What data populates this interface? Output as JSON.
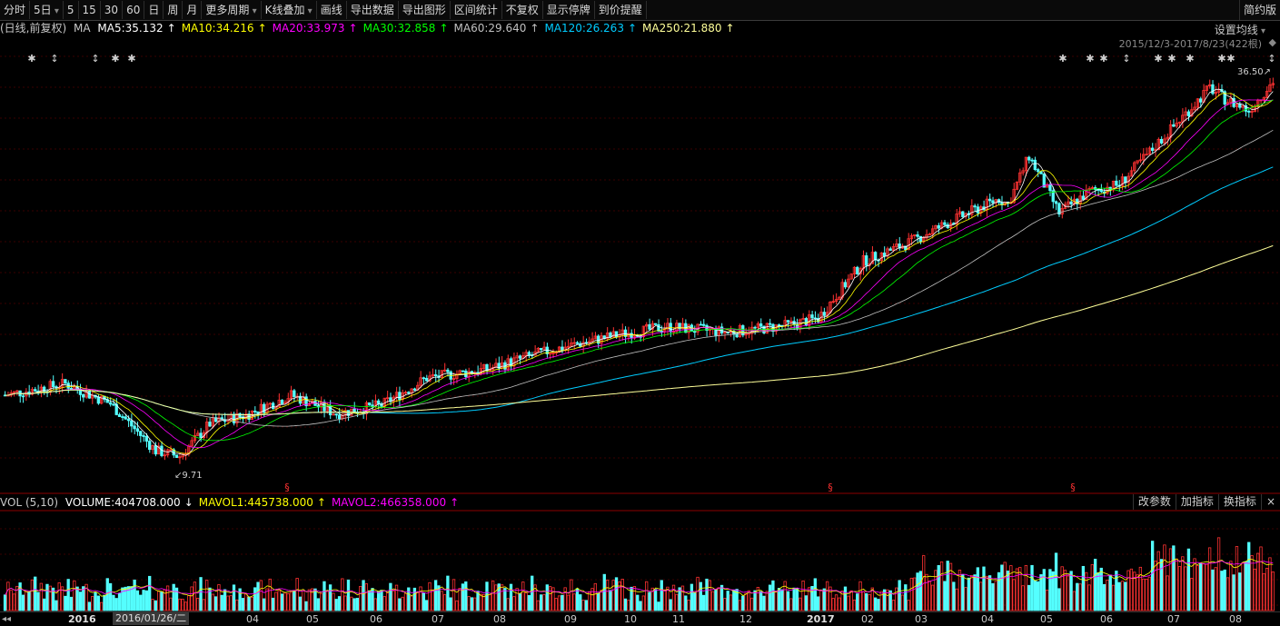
{
  "toolbar": {
    "items": [
      {
        "label": "分时",
        "dropdown": false
      },
      {
        "label": "5日",
        "dropdown": true
      },
      {
        "label": "5",
        "dropdown": false
      },
      {
        "label": "15",
        "dropdown": false
      },
      {
        "label": "30",
        "dropdown": false
      },
      {
        "label": "60",
        "dropdown": false
      },
      {
        "label": "日",
        "dropdown": false
      },
      {
        "label": "周",
        "dropdown": false
      },
      {
        "label": "月",
        "dropdown": false
      },
      {
        "label": "更多周期",
        "dropdown": true
      },
      {
        "label": "K线叠加",
        "dropdown": true
      },
      {
        "label": "画线",
        "dropdown": false
      },
      {
        "label": "导出数据",
        "dropdown": false
      },
      {
        "label": "导出图形",
        "dropdown": false
      },
      {
        "label": "区间统计",
        "dropdown": false
      },
      {
        "label": "不复权",
        "dropdown": false
      },
      {
        "label": "显示停牌",
        "dropdown": false
      },
      {
        "label": "到价提醒",
        "dropdown": false
      }
    ],
    "right_label": "简约版"
  },
  "ma_legend": {
    "prefix": "(日线,前复权)",
    "ma": "MA",
    "items": [
      {
        "text": "MA5:35.132",
        "color": "#ffffff",
        "arrow": "↑"
      },
      {
        "text": "MA10:34.216",
        "color": "#ffff00",
        "arrow": "↑"
      },
      {
        "text": "MA20:33.973",
        "color": "#ff00ff",
        "arrow": "↑"
      },
      {
        "text": "MA30:32.858",
        "color": "#00ff00",
        "arrow": "↑"
      },
      {
        "text": "MA60:29.640",
        "color": "#c0c0c0",
        "arrow": "↑"
      },
      {
        "text": "MA120:26.263",
        "color": "#00ccff",
        "arrow": "↑"
      },
      {
        "text": "MA250:21.880",
        "color": "#ffff99",
        "arrow": "↑"
      }
    ]
  },
  "setting_label": "设置均线",
  "date_range": "2015/12/3-2017/8/23(422根)",
  "price_annotations": {
    "high": "36.50",
    "low": "9.71"
  },
  "volume_legend": {
    "prefix": "VOL (5,10)",
    "items": [
      {
        "text": "VOLUME:404708.000",
        "color": "#ffffff",
        "arrow": "↓"
      },
      {
        "text": "MAVOL1:445738.000",
        "color": "#ffff00",
        "arrow": "↑"
      },
      {
        "text": "MAVOL2:466358.000",
        "color": "#ff00ff",
        "arrow": "↑"
      }
    ],
    "buttons": [
      "改参数",
      "加指标",
      "换指标",
      "×"
    ]
  },
  "xaxis": {
    "cursor_date": "2016/01/26/二",
    "labels": [
      {
        "text": "2016",
        "year": true
      },
      {
        "text": "04",
        "year": false
      },
      {
        "text": "05",
        "year": false
      },
      {
        "text": "06",
        "year": false
      },
      {
        "text": "07",
        "year": false
      },
      {
        "text": "08",
        "year": false
      },
      {
        "text": "09",
        "year": false
      },
      {
        "text": "10",
        "year": false
      },
      {
        "text": "11",
        "year": false
      },
      {
        "text": "12",
        "year": false
      },
      {
        "text": "2017",
        "year": true
      },
      {
        "text": "02",
        "year": false
      },
      {
        "text": "03",
        "year": false
      },
      {
        "text": "04",
        "year": false
      },
      {
        "text": "05",
        "year": false
      },
      {
        "text": "06",
        "year": false
      },
      {
        "text": "07",
        "year": false
      },
      {
        "text": "08",
        "year": false
      }
    ]
  },
  "colors": {
    "up": "#ff3232",
    "down": "#54ffff",
    "grid": "#3a0000",
    "bg": "#000000"
  },
  "chart_data": {
    "type": "candlestick",
    "price_range": [
      8,
      38
    ],
    "start_price": 14.2,
    "end_price": 35.0,
    "marker_symbol": "§"
  }
}
